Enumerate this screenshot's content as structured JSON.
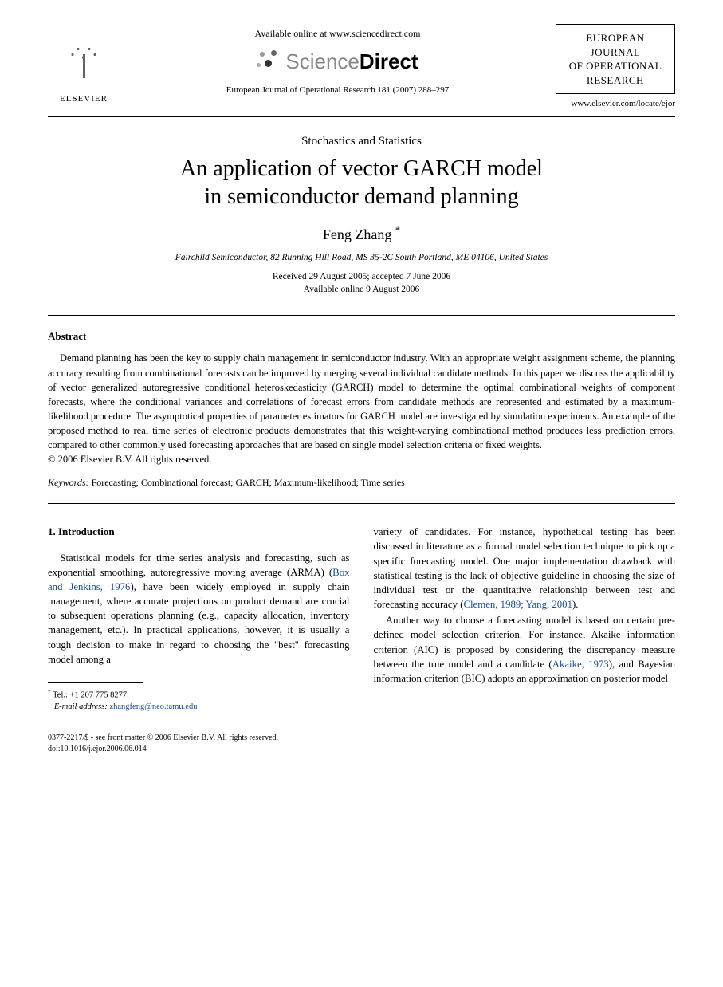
{
  "header": {
    "publisher_name": "ELSEVIER",
    "available_text": "Available online at www.sciencedirect.com",
    "sd_light": "Science",
    "sd_bold": "Direct",
    "citation": "European Journal of Operational Research 181 (2007) 288–297",
    "journal_box_l1": "EUROPEAN",
    "journal_box_l2": "JOURNAL",
    "journal_box_l3": "OF OPERATIONAL",
    "journal_box_l4": "RESEARCH",
    "journal_url": "www.elsevier.com/locate/ejor"
  },
  "article": {
    "section": "Stochastics and Statistics",
    "title_l1": "An application of vector GARCH model",
    "title_l2": "in semiconductor demand planning",
    "author": "Feng Zhang",
    "author_marker": "*",
    "affiliation": "Fairchild Semiconductor, 82 Running Hill Road, MS 35-2C South Portland, ME 04106, United States",
    "received": "Received 29 August 2005; accepted 7 June 2006",
    "available_online": "Available online 9 August 2006"
  },
  "abstract": {
    "heading": "Abstract",
    "text": "Demand planning has been the key to supply chain management in semiconductor industry. With an appropriate weight assignment scheme, the planning accuracy resulting from combinational forecasts can be improved by merging several individual candidate methods. In this paper we discuss the applicability of vector generalized autoregressive conditional heteroskedasticity (GARCH) model to determine the optimal combinational weights of component forecasts, where the conditional variances and correlations of forecast errors from candidate methods are represented and estimated by a maximum-likelihood procedure. The asymptotical properties of parameter estimators for GARCH model are investigated by simulation experiments. An example of the proposed method to real time series of electronic products demonstrates that this weight-varying combinational method produces less prediction errors, compared to other commonly used forecasting approaches that are based on single model selection criteria or fixed weights.",
    "copyright": "© 2006 Elsevier B.V. All rights reserved.",
    "keywords_label": "Keywords:",
    "keywords": "Forecasting; Combinational forecast; GARCH; Maximum-likelihood; Time series"
  },
  "body": {
    "intro_heading": "1. Introduction",
    "col1_p1a": "Statistical models for time series analysis and forecasting, such as exponential smoothing, autoregressive moving average (ARMA) (",
    "col1_link1": "Box and Jenkins, 1976",
    "col1_p1b": "), have been widely employed in supply chain management, where accurate projections on product demand are crucial to subsequent operations planning (e.g., capacity allocation, inventory management, etc.). In practical applications, however, it is usually a tough decision to make in regard to choosing the \"best\" forecasting model among a",
    "col2_p1a": "variety of candidates. For instance, hypothetical testing has been discussed in literature as a formal model selection technique to pick up a specific forecasting model. One major implementation drawback with statistical testing is the lack of objective guideline in choosing the size of individual test or the quantitative relationship between test and forecasting accuracy (",
    "col2_link1": "Clemen, 1989; Yang, 2001",
    "col2_p1b": ").",
    "col2_p2a": "Another way to choose a forecasting model is based on certain pre-defined model selection criterion. For instance, Akaike information criterion (AIC) is proposed by considering the discrepancy measure between the true model and a candidate (",
    "col2_link2": "Akaike, 1973",
    "col2_p2b": "), and Bayesian information criterion (BIC) adopts an approximation on posterior model"
  },
  "footnote": {
    "marker": "*",
    "tel_label": "Tel.:",
    "tel": "+1 207 775 8277.",
    "email_label": "E-mail address:",
    "email": "zhangfeng@neo.tamu.edu"
  },
  "footer": {
    "line1": "0377-2217/$ - see front matter © 2006 Elsevier B.V. All rights reserved.",
    "line2": "doi:10.1016/j.ejor.2006.06.014"
  },
  "colors": {
    "link": "#1a4b9b",
    "text": "#000000",
    "bg": "#ffffff"
  }
}
